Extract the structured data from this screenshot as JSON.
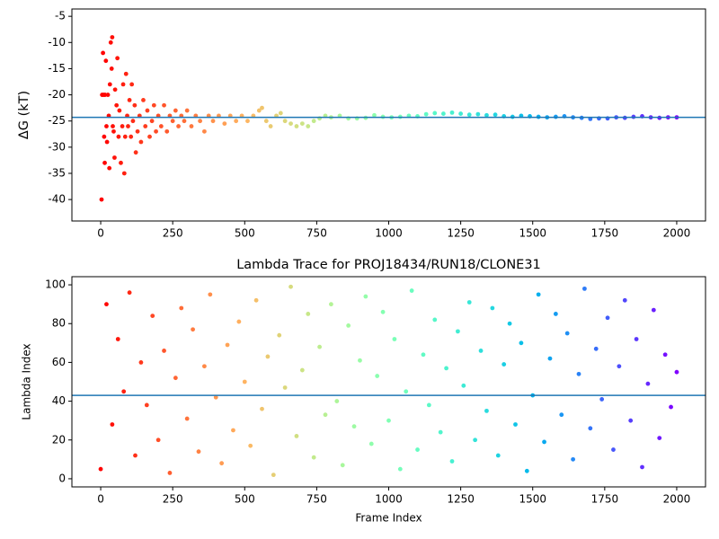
{
  "chart_data": [
    {
      "type": "scatter",
      "ylabel": "ΔG (kT)",
      "colormap": "rainbow_r",
      "x": [
        3,
        5,
        8,
        10,
        12,
        14,
        15,
        18,
        20,
        22,
        25,
        28,
        30,
        32,
        35,
        38,
        40,
        42,
        45,
        48,
        50,
        55,
        58,
        62,
        65,
        70,
        75,
        78,
        82,
        85,
        88,
        92,
        95,
        100,
        105,
        108,
        112,
        118,
        122,
        128,
        135,
        140,
        148,
        155,
        162,
        170,
        178,
        185,
        192,
        200,
        210,
        220,
        230,
        240,
        250,
        260,
        270,
        280,
        290,
        300,
        315,
        330,
        345,
        360,
        375,
        390,
        410,
        430,
        450,
        470,
        490,
        510,
        530,
        550,
        560,
        575,
        590,
        610,
        625,
        640,
        660,
        680,
        700,
        720,
        740,
        760,
        780,
        800,
        830,
        860,
        890,
        920,
        950,
        980,
        1010,
        1040,
        1070,
        1100,
        1130,
        1160,
        1190,
        1220,
        1250,
        1280,
        1310,
        1340,
        1370,
        1400,
        1430,
        1460,
        1490,
        1520,
        1550,
        1580,
        1610,
        1640,
        1670,
        1700,
        1730,
        1760,
        1790,
        1820,
        1850,
        1880,
        1910,
        1940,
        1970,
        2000
      ],
      "values": [
        -40,
        -20,
        -12,
        -20,
        -28,
        -33,
        -20,
        -13.5,
        -26,
        -29,
        -20,
        -24,
        -34,
        -18,
        -10,
        -15,
        -9,
        -26,
        -27,
        -32,
        -19,
        -22,
        -13,
        -28,
        -23,
        -33,
        -26,
        -18,
        -35,
        -28,
        -16,
        -24,
        -26,
        -21,
        -28,
        -18,
        -25,
        -22,
        -31,
        -27,
        -24,
        -29,
        -21,
        -26,
        -23,
        -28,
        -25,
        -22,
        -27,
        -24,
        -26,
        -22,
        -27,
        -24,
        -25,
        -23,
        -26,
        -24,
        -25,
        -23,
        -26,
        -24,
        -25,
        -27,
        -24,
        -25,
        -24,
        -25.5,
        -24,
        -25,
        -24,
        -25,
        -24,
        -23,
        -22.5,
        -25,
        -26,
        -24,
        -23.5,
        -25,
        -25.5,
        -26,
        -25.5,
        -26,
        -25,
        -24.5,
        -24,
        -24.3,
        -24,
        -24.5,
        -24.5,
        -24.4,
        -23.9,
        -24.2,
        -24.3,
        -24.2,
        -24,
        -24.1,
        -23.7,
        -23.5,
        -23.6,
        -23.4,
        -23.6,
        -23.8,
        -23.7,
        -23.9,
        -23.8,
        -24.1,
        -24.2,
        -24,
        -24.1,
        -24.2,
        -24.3,
        -24.2,
        -24.1,
        -24.3,
        -24.4,
        -24.6,
        -24.5,
        -24.5,
        -24.3,
        -24.4,
        -24.2,
        -24.1,
        -24.3,
        -24.4,
        -24.3,
        -24.3
      ],
      "hline": -24.3,
      "hline_color": "#1f77b4",
      "xlim": [
        -100,
        2100
      ],
      "xticks": [
        0,
        250,
        500,
        750,
        1000,
        1250,
        1500,
        1750,
        2000
      ],
      "ylim": [
        -44.1,
        -3.6
      ],
      "yticks": [
        -40,
        -35,
        -30,
        -25,
        -20,
        -15,
        -10,
        -5
      ]
    },
    {
      "type": "scatter",
      "title": "Lambda Trace for PROJ18434/RUN18/CLONE31",
      "xlabel": "Frame Index",
      "ylabel": "Lambda Index",
      "colormap": "rainbow_r",
      "x": [
        0,
        20,
        40,
        60,
        80,
        100,
        120,
        140,
        160,
        180,
        200,
        220,
        240,
        260,
        280,
        300,
        320,
        340,
        360,
        380,
        400,
        420,
        440,
        460,
        480,
        500,
        520,
        540,
        560,
        580,
        600,
        620,
        640,
        660,
        680,
        700,
        720,
        740,
        760,
        780,
        800,
        820,
        840,
        860,
        880,
        900,
        920,
        940,
        960,
        980,
        1000,
        1020,
        1040,
        1060,
        1080,
        1100,
        1120,
        1140,
        1160,
        1180,
        1200,
        1220,
        1240,
        1260,
        1280,
        1300,
        1320,
        1340,
        1360,
        1380,
        1400,
        1420,
        1440,
        1460,
        1480,
        1500,
        1520,
        1540,
        1560,
        1580,
        1600,
        1620,
        1640,
        1660,
        1680,
        1700,
        1720,
        1740,
        1760,
        1780,
        1800,
        1820,
        1840,
        1860,
        1880,
        1900,
        1920,
        1940,
        1960,
        1980,
        2000
      ],
      "values": [
        5,
        90,
        28,
        72,
        45,
        96,
        12,
        60,
        38,
        84,
        20,
        66,
        3,
        52,
        88,
        31,
        77,
        14,
        58,
        95,
        42,
        8,
        69,
        25,
        81,
        50,
        17,
        92,
        36,
        63,
        2,
        74,
        47,
        99,
        22,
        56,
        85,
        11,
        68,
        33,
        90,
        40,
        7,
        79,
        27,
        61,
        94,
        18,
        53,
        86,
        30,
        72,
        5,
        45,
        97,
        15,
        64,
        38,
        82,
        24,
        57,
        9,
        76,
        48,
        91,
        20,
        66,
        35,
        88,
        12,
        59,
        80,
        28,
        70,
        4,
        43,
        95,
        19,
        62,
        85,
        33,
        75,
        10,
        54,
        98,
        26,
        67,
        41,
        83,
        15,
        58,
        92,
        30,
        72,
        6,
        49,
        87,
        21,
        64,
        37,
        55
      ],
      "hline": 43,
      "hline_color": "#1f77b4",
      "xlim": [
        -100,
        2100
      ],
      "xticks": [
        0,
        250,
        500,
        750,
        1000,
        1250,
        1500,
        1750,
        2000
      ],
      "ylim": [
        -4.2,
        104.2
      ],
      "yticks": [
        0,
        20,
        40,
        60,
        80,
        100
      ]
    }
  ]
}
